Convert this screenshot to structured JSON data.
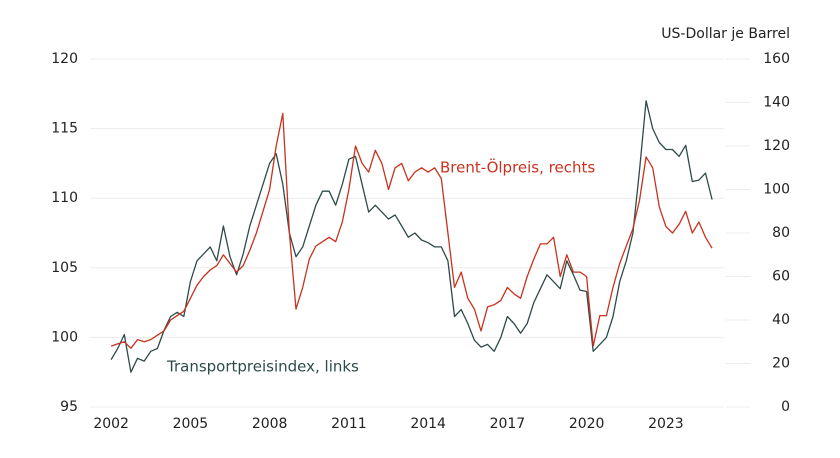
{
  "chart_data": {
    "type": "line",
    "y2_label": "US-Dollar je Barrel",
    "annotations": [
      "Brent-Ölpreis, rechts",
      "Transportpreisindex, links"
    ],
    "x": [
      2002,
      2002.25,
      2002.5,
      2002.75,
      2003,
      2003.25,
      2003.5,
      2003.75,
      2004,
      2004.25,
      2004.5,
      2004.75,
      2005,
      2005.25,
      2005.5,
      2005.75,
      2006,
      2006.25,
      2006.5,
      2006.75,
      2007,
      2007.25,
      2007.5,
      2007.75,
      2008,
      2008.25,
      2008.5,
      2008.75,
      2009,
      2009.25,
      2009.5,
      2009.75,
      2010,
      2010.25,
      2010.5,
      2010.75,
      2011,
      2011.25,
      2011.5,
      2011.75,
      2012,
      2012.25,
      2012.5,
      2012.75,
      2013,
      2013.25,
      2013.5,
      2013.75,
      2014,
      2014.25,
      2014.5,
      2014.75,
      2015,
      2015.25,
      2015.5,
      2015.75,
      2016,
      2016.25,
      2016.5,
      2016.75,
      2017,
      2017.25,
      2017.5,
      2017.75,
      2018,
      2018.25,
      2018.5,
      2018.75,
      2019,
      2019.25,
      2019.5,
      2019.75,
      2020,
      2020.25,
      2020.5,
      2020.75,
      2021,
      2021.25,
      2021.5,
      2021.75,
      2022,
      2022.25,
      2022.5,
      2022.75,
      2023,
      2023.25,
      2023.5,
      2023.75,
      2024,
      2024.25,
      2024.5,
      2024.75
    ],
    "series": [
      {
        "name": "Transportpreisindex",
        "color": "#2f4a4a",
        "axis": "y",
        "values": [
          98.4,
          99.2,
          100.2,
          97.5,
          98.5,
          98.3,
          99,
          99.2,
          100.5,
          101.5,
          101.8,
          101.5,
          104,
          105.5,
          106,
          106.5,
          105.5,
          108,
          105.8,
          104.5,
          106,
          108,
          109.5,
          111,
          112.5,
          113.2,
          111,
          107.5,
          105.8,
          106.5,
          108,
          109.5,
          110.5,
          110.5,
          109.5,
          111,
          112.8,
          113,
          111,
          109,
          109.5,
          109,
          108.5,
          108.8,
          108,
          107.2,
          107.5,
          107,
          106.8,
          106.5,
          106.5,
          105.5,
          101.5,
          102,
          101,
          99.8,
          99.3,
          99.5,
          99,
          100,
          101.5,
          101,
          100.3,
          101,
          102.5,
          103.5,
          104.5,
          104,
          103.5,
          105.5,
          104.5,
          103.4,
          103.3,
          99,
          99.5,
          100,
          101.5,
          104,
          105.5,
          107.5,
          112,
          117,
          115,
          114,
          113.5,
          113.5,
          113,
          113.8,
          111.2,
          111.3,
          111.8,
          109.9
        ]
      },
      {
        "name": "Brent-Ölpreis",
        "color": "#c8321e",
        "axis": "y2",
        "values": [
          28,
          29,
          30,
          27,
          31,
          30,
          31,
          33,
          35,
          40,
          42,
          44,
          50,
          56,
          60,
          63,
          65,
          70,
          66,
          62,
          65,
          72,
          80,
          90,
          100,
          120,
          135,
          80,
          45,
          55,
          68,
          74,
          76,
          78,
          76,
          85,
          100,
          120,
          112,
          108,
          118,
          112,
          100,
          110,
          112,
          104,
          108,
          110,
          108,
          110,
          105,
          80,
          55,
          62,
          50,
          45,
          35,
          46,
          47,
          49,
          55,
          52,
          50,
          60,
          68,
          75,
          75,
          78,
          60,
          70,
          62,
          62,
          60,
          28,
          42,
          42,
          55,
          66,
          74,
          82,
          95,
          115,
          110,
          92,
          83,
          80,
          84,
          90,
          80,
          85,
          78,
          73
        ]
      }
    ],
    "xlim": [
      2001.2,
      2025.2
    ],
    "xticks": [
      2002,
      2005,
      2008,
      2011,
      2014,
      2017,
      2020,
      2023
    ],
    "ylim": [
      95,
      120
    ],
    "yticks": [
      95,
      100,
      105,
      110,
      115,
      120
    ],
    "y2lim": [
      0,
      160
    ],
    "y2ticks": [
      0,
      20,
      40,
      60,
      80,
      100,
      120,
      140,
      160
    ],
    "grid": true
  }
}
